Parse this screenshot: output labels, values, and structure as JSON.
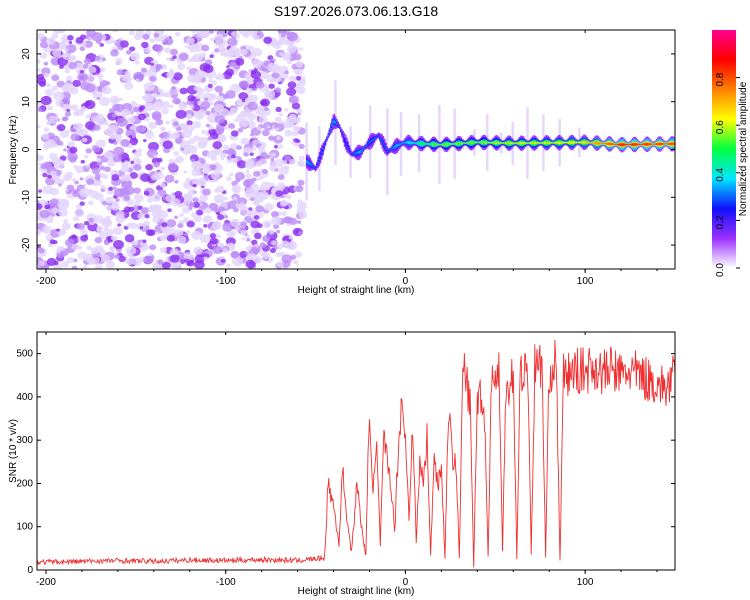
{
  "title": "S197.2026.073.06.13.G18",
  "chart_data": [
    {
      "type": "heatmap",
      "title": "S197.2026.073.06.13.G18",
      "xlabel": "Height of straight line (km)",
      "ylabel": "Frequency (Hz)",
      "xlim": [
        -205,
        150
      ],
      "ylim": [
        -25,
        25
      ],
      "x_ticks": [
        -200,
        -100,
        0,
        100
      ],
      "y_ticks": [
        -20,
        -10,
        0,
        10,
        20
      ],
      "colorbar": {
        "label": "Normalized spectral amplitude",
        "range": [
          0,
          1
        ],
        "ticks": [
          0.0,
          0.2,
          0.4,
          0.6,
          0.8
        ],
        "colors": [
          "#ffffff",
          "#9b30ff",
          "#1010ff",
          "#00e5ff",
          "#00ff40",
          "#ffff00",
          "#ff8000",
          "#ff0000",
          "#ff0090"
        ]
      },
      "noise_region_x": [
        -205,
        -57
      ],
      "ridge": {
        "description": "dominant frequency track",
        "x": [
          -55,
          -50,
          -45,
          -40,
          -37,
          -34,
          -30,
          -25,
          -20,
          -15,
          -12,
          -10,
          -5,
          0,
          10,
          20,
          40,
          60,
          80,
          100,
          120,
          150
        ],
        "freq": [
          -2.5,
          -4.0,
          1.0,
          6.0,
          5.0,
          2.0,
          -1.0,
          -0.5,
          1.5,
          3.0,
          1.0,
          -0.5,
          0.8,
          1.5,
          1.2,
          1.0,
          1.5,
          1.3,
          1.4,
          1.5,
          1.0,
          1.2
        ],
        "amplitude": [
          0.35,
          0.3,
          0.3,
          0.35,
          0.3,
          0.25,
          0.3,
          0.35,
          0.3,
          0.3,
          0.3,
          0.3,
          0.35,
          0.35,
          0.5,
          0.55,
          0.55,
          0.6,
          0.6,
          0.65,
          0.85,
          0.8
        ]
      }
    },
    {
      "type": "line",
      "xlabel": "Height of straight line (km)",
      "ylabel": "SNR (10 * v/v)",
      "xlim": [
        -205,
        150
      ],
      "ylim": [
        0,
        550
      ],
      "x_ticks": [
        -200,
        -100,
        0,
        100
      ],
      "y_ticks": [
        0,
        100,
        200,
        300,
        400,
        500
      ],
      "color": "#f03030",
      "series": [
        {
          "name": "SNR",
          "x": [
            -205,
            -180,
            -160,
            -140,
            -120,
            -100,
            -80,
            -60,
            -45,
            -43,
            -40,
            -37,
            -35,
            -32,
            -30,
            -27,
            -25,
            -22,
            -20,
            -18,
            -16,
            -14,
            -12,
            -10,
            -8,
            -6,
            -4,
            -2,
            0,
            2,
            4,
            6,
            8,
            10,
            12,
            14,
            16,
            18,
            20,
            22,
            24,
            26,
            28,
            30,
            32,
            34,
            36,
            38,
            40,
            42,
            44,
            46,
            48,
            50,
            52,
            54,
            56,
            58,
            60,
            62,
            64,
            66,
            68,
            70,
            72,
            74,
            76,
            78,
            80,
            82,
            84,
            86,
            88,
            90,
            95,
            100,
            105,
            110,
            115,
            120,
            125,
            130,
            135,
            140,
            145,
            150
          ],
          "y": [
            18,
            20,
            22,
            20,
            23,
            22,
            24,
            22,
            28,
            200,
            150,
            60,
            230,
            100,
            40,
            200,
            120,
            30,
            390,
            180,
            280,
            60,
            300,
            250,
            200,
            90,
            280,
            400,
            300,
            120,
            350,
            60,
            250,
            200,
            310,
            30,
            270,
            200,
            240,
            30,
            380,
            260,
            260,
            30,
            470,
            440,
            380,
            10,
            400,
            410,
            360,
            30,
            470,
            420,
            480,
            40,
            440,
            430,
            460,
            30,
            470,
            450,
            480,
            40,
            470,
            470,
            480,
            30,
            460,
            470,
            480,
            20,
            450,
            450,
            460,
            460,
            470,
            455,
            465,
            450,
            460,
            450,
            440,
            430,
            420,
            450
          ]
        }
      ]
    }
  ]
}
